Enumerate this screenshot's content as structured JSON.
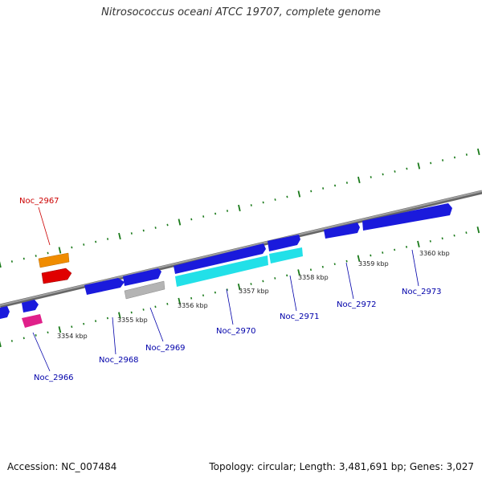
{
  "title": "Nitrosococcus oceani ATCC 19707, complete genome",
  "footer": {
    "accession": "Accession: NC_007484",
    "stats": "Topology: circular; Length: 3,481,691 bp; Genes: 3,027"
  },
  "ticks": [
    "3354 kbp",
    "3355 kbp",
    "3356 kbp",
    "3357 kbp",
    "3358 kbp",
    "3359 kbp",
    "3360 kbp"
  ],
  "gene_labels": [
    {
      "text": "Noc_2967",
      "color": "#cc0000"
    },
    {
      "text": "Noc_2966",
      "color": "#0000aa"
    },
    {
      "text": "Noc_2968",
      "color": "#0000aa"
    },
    {
      "text": "Noc_2969",
      "color": "#0000aa"
    },
    {
      "text": "Noc_2970",
      "color": "#0000aa"
    },
    {
      "text": "Noc_2971",
      "color": "#0000aa"
    },
    {
      "text": "Noc_2972",
      "color": "#0000aa"
    },
    {
      "text": "Noc_2973",
      "color": "#0000aa"
    }
  ],
  "colors": {
    "backbone": "#808080",
    "tick_marks": "#1a7a1a",
    "cds": "#1a1adc",
    "orange": "#f08c00",
    "red": "#e00000",
    "pink": "#e0208a",
    "cyan": "#22e0e8",
    "grey": "#b4b4b4"
  }
}
